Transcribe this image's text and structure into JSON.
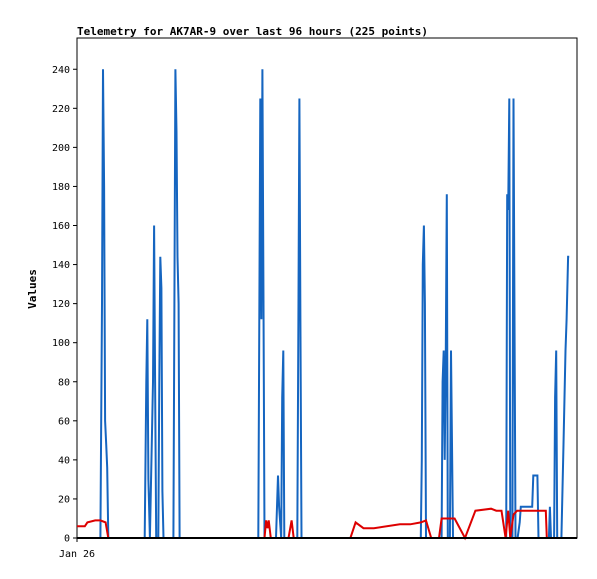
{
  "chart_data": {
    "type": "line",
    "title": "Telemetry for AK7AR-9 over last 96 hours (225 points)",
    "ylabel": "Values",
    "xlabel": "",
    "x_tick_labels": [
      {
        "x": 0,
        "label": "Jan 26"
      }
    ],
    "xlim": [
      0,
      96
    ],
    "ylim": [
      0,
      256
    ],
    "y_ticks": [
      0,
      20,
      40,
      60,
      80,
      100,
      120,
      140,
      160,
      180,
      200,
      220,
      240
    ],
    "grid": false,
    "colors": {
      "blue": "#1565c0",
      "red": "#dd0000",
      "black": "#000000"
    },
    "series": [
      {
        "color": "#1565c0",
        "points": [
          [
            0,
            0
          ],
          [
            4.5,
            0
          ],
          [
            4.8,
            120
          ],
          [
            5.0,
            240
          ],
          [
            5.2,
            180
          ],
          [
            5.4,
            60
          ],
          [
            5.6,
            48
          ],
          [
            5.8,
            36
          ],
          [
            6.0,
            0
          ],
          [
            13.0,
            0
          ],
          [
            13.3,
            80
          ],
          [
            13.5,
            112
          ],
          [
            13.7,
            30
          ],
          [
            14.0,
            0
          ],
          [
            14.6,
            80
          ],
          [
            14.8,
            160
          ],
          [
            15.0,
            80
          ],
          [
            15.2,
            0
          ],
          [
            15.6,
            0
          ],
          [
            15.8,
            80
          ],
          [
            16.0,
            144
          ],
          [
            16.2,
            128
          ],
          [
            16.4,
            24
          ],
          [
            16.6,
            0
          ],
          [
            18.5,
            0
          ],
          [
            18.7,
            120
          ],
          [
            18.9,
            240
          ],
          [
            19.1,
            208
          ],
          [
            19.3,
            144
          ],
          [
            19.5,
            120
          ],
          [
            19.7,
            0
          ],
          [
            34.8,
            0
          ],
          [
            35.0,
            112
          ],
          [
            35.2,
            225
          ],
          [
            35.4,
            112
          ],
          [
            35.6,
            240
          ],
          [
            35.8,
            120
          ],
          [
            36.0,
            0
          ],
          [
            38.2,
            0
          ],
          [
            38.4,
            16
          ],
          [
            38.6,
            32
          ],
          [
            38.8,
            16
          ],
          [
            39.2,
            0
          ],
          [
            39.4,
            72
          ],
          [
            39.6,
            96
          ],
          [
            39.8,
            0
          ],
          [
            42.3,
            0
          ],
          [
            42.5,
            112
          ],
          [
            42.7,
            225
          ],
          [
            42.9,
            112
          ],
          [
            43.1,
            0
          ],
          [
            66.0,
            0
          ],
          [
            66.2,
            40
          ],
          [
            66.4,
            140
          ],
          [
            66.6,
            160
          ],
          [
            66.8,
            120
          ],
          [
            67.0,
            0
          ],
          [
            70.0,
            0
          ],
          [
            70.2,
            80
          ],
          [
            70.4,
            96
          ],
          [
            70.6,
            40
          ],
          [
            70.8,
            88
          ],
          [
            71.0,
            176
          ],
          [
            71.2,
            0
          ],
          [
            71.6,
            0
          ],
          [
            71.8,
            96
          ],
          [
            72.0,
            48
          ],
          [
            72.2,
            0
          ],
          [
            82.4,
            0
          ],
          [
            82.6,
            176
          ],
          [
            82.8,
            168
          ],
          [
            83.0,
            225
          ],
          [
            83.2,
            0
          ],
          [
            83.6,
            0
          ],
          [
            83.8,
            225
          ],
          [
            84.0,
            112
          ],
          [
            84.2,
            0
          ],
          [
            84.6,
            0
          ],
          [
            85.0,
            8
          ],
          [
            85.2,
            16
          ],
          [
            87.4,
            16
          ],
          [
            87.6,
            32
          ],
          [
            88.4,
            32
          ],
          [
            88.6,
            0
          ],
          [
            90.6,
            0
          ],
          [
            90.8,
            16
          ],
          [
            91.0,
            0
          ],
          [
            91.6,
            0
          ],
          [
            91.8,
            72
          ],
          [
            92.0,
            96
          ],
          [
            92.2,
            0
          ],
          [
            93.0,
            0
          ],
          [
            93.4,
            48
          ],
          [
            93.8,
            96
          ],
          [
            94.0,
            112
          ],
          [
            94.3,
            144
          ],
          [
            94.5,
            144
          ]
        ]
      },
      {
        "color": "#dd0000",
        "points": [
          [
            0,
            6
          ],
          [
            1.5,
            6
          ],
          [
            2.0,
            8
          ],
          [
            3.5,
            9
          ],
          [
            4.5,
            9
          ],
          [
            5.5,
            8
          ],
          [
            6.0,
            0
          ],
          [
            36.0,
            0
          ],
          [
            36.3,
            9
          ],
          [
            36.6,
            5
          ],
          [
            36.8,
            9
          ],
          [
            37.2,
            0
          ],
          [
            40.6,
            0
          ],
          [
            41.2,
            9
          ],
          [
            41.6,
            0
          ],
          [
            52.5,
            0
          ],
          [
            53.5,
            8
          ],
          [
            55.0,
            5
          ],
          [
            57.0,
            5
          ],
          [
            62.0,
            7
          ],
          [
            64.0,
            7
          ],
          [
            66.0,
            8
          ],
          [
            67.0,
            9
          ],
          [
            68.0,
            0
          ],
          [
            69.5,
            0
          ],
          [
            70.0,
            10
          ],
          [
            71.2,
            10
          ],
          [
            72.5,
            10
          ],
          [
            74.5,
            0
          ],
          [
            76.5,
            14
          ],
          [
            79.5,
            15
          ],
          [
            80.5,
            14
          ],
          [
            81.5,
            14
          ],
          [
            82.3,
            0
          ],
          [
            82.8,
            14
          ],
          [
            83.2,
            0
          ],
          [
            83.8,
            12
          ],
          [
            84.5,
            14
          ],
          [
            87.5,
            14
          ],
          [
            90.0,
            14
          ],
          [
            90.2,
            0
          ]
        ]
      },
      {
        "color": "#000000",
        "points": [
          [
            0,
            0
          ],
          [
            96,
            0
          ]
        ]
      }
    ]
  }
}
